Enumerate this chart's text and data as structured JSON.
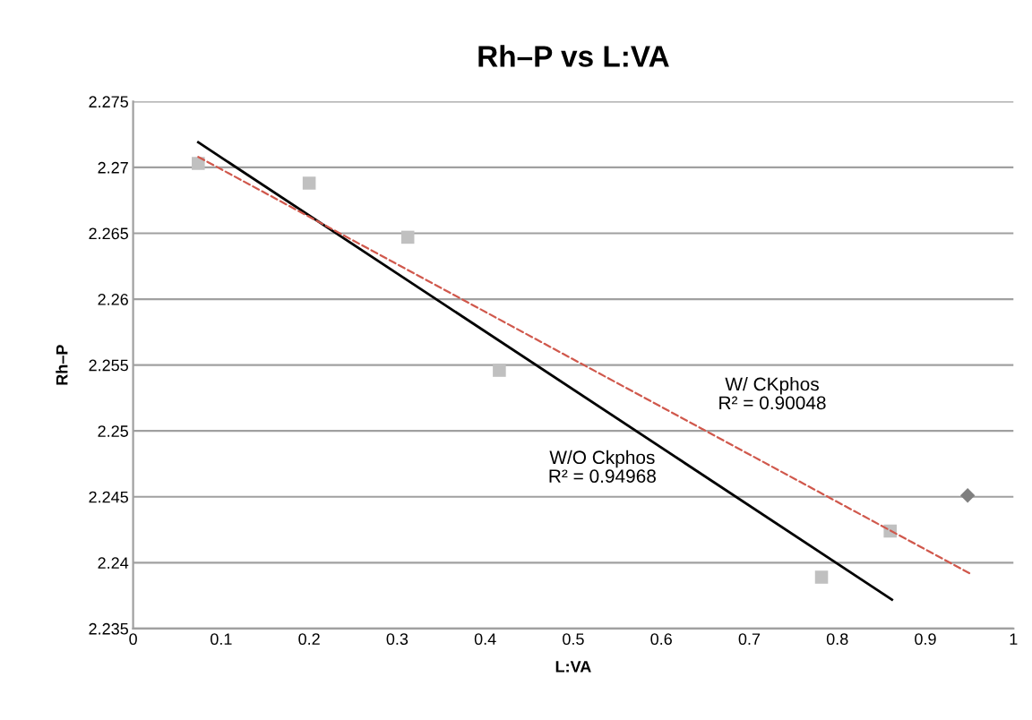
{
  "chart_data": {
    "type": "scatter",
    "title": "Rh–P vs L:VA",
    "xlabel": "L:VA",
    "ylabel": "Rh–P",
    "xlim": [
      0,
      1
    ],
    "xticks": [
      0,
      0.1,
      0.2,
      0.3,
      0.4,
      0.5,
      0.6,
      0.7,
      0.8,
      0.9,
      1
    ],
    "ylim": [
      2.235,
      2.275
    ],
    "yticks": [
      2.235,
      2.24,
      2.245,
      2.25,
      2.255,
      2.26,
      2.265,
      2.27,
      2.275
    ],
    "grid": "y",
    "legend": false,
    "series": [
      {
        "marker": "square",
        "color": "#c0c0c0",
        "x": [
          0.074,
          0.2,
          0.312,
          0.416,
          0.782,
          0.86
        ],
        "values": [
          2.2703,
          2.2688,
          2.2647,
          2.2546,
          2.2389,
          2.2424
        ]
      },
      {
        "marker": "diamond",
        "color": "#7f7f7f",
        "x": [
          0.948
        ],
        "values": [
          2.2451
        ]
      },
      {
        "type": "line",
        "marker": "none",
        "line_style": "solid",
        "color": "#000000",
        "x": [
          0.074,
          0.862
        ],
        "values": [
          2.2719,
          2.2372
        ]
      },
      {
        "type": "line",
        "marker": "none",
        "line_style": "dashed",
        "color": "#d0584c",
        "x": [
          0.074,
          0.95
        ],
        "values": [
          2.2708,
          2.2392
        ]
      }
    ],
    "annotations": [
      "W/ CKphos\nR² = 0.90048",
      "W/O Ckphos\nR² = 0.94968"
    ]
  }
}
